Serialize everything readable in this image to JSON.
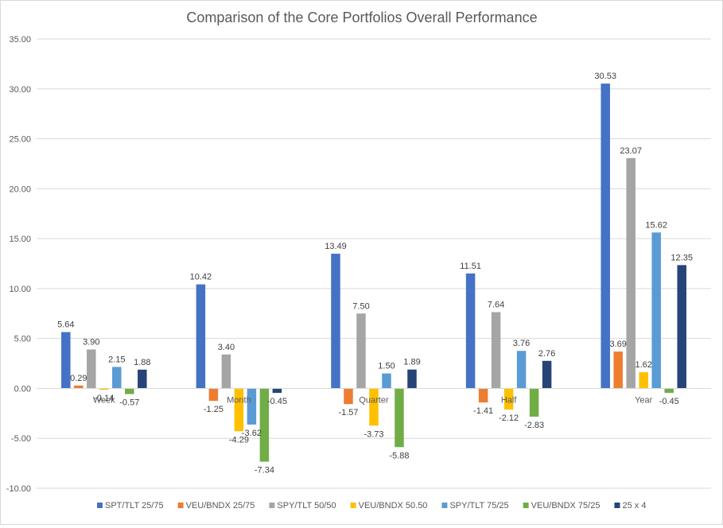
{
  "chart_data": {
    "type": "bar",
    "title": "Comparison of the Core Portfolios Overall Performance",
    "xlabel": "",
    "ylabel": "",
    "ylim": [
      -10,
      35
    ],
    "yticks": [
      "-10.00",
      "-5.00",
      "0.00",
      "5.00",
      "10.00",
      "15.00",
      "20.00",
      "25.00",
      "30.00",
      "35.00"
    ],
    "ytick_values": [
      -10,
      -5,
      0,
      5,
      10,
      15,
      20,
      25,
      30,
      35
    ],
    "grid": true,
    "legend_position": "bottom",
    "categories": [
      "Week",
      "Month",
      "Quarter",
      "Half",
      "Year"
    ],
    "series": [
      {
        "name": "SPT/TLT 25/75",
        "color": "#4472C4",
        "values": [
          5.64,
          10.42,
          13.49,
          11.51,
          30.53
        ],
        "labels": [
          "5.64",
          "10.42",
          "13.49",
          "11.51",
          "30.53"
        ]
      },
      {
        "name": "VEU/BNDX 25/75",
        "color": "#ED7D31",
        "values": [
          0.29,
          -1.25,
          -1.57,
          -1.41,
          3.69
        ],
        "labels": [
          "0.29",
          "-1.25",
          "-1.57",
          "-1.41",
          "3.69"
        ]
      },
      {
        "name": "SPY/TLT 50/50",
        "color": "#A5A5A5",
        "values": [
          3.9,
          3.4,
          7.5,
          7.64,
          23.07
        ],
        "labels": [
          "3.90",
          "3.40",
          "7.50",
          "7.64",
          "23.07"
        ]
      },
      {
        "name": "VEU/BNDX 50.50",
        "color": "#FFC000",
        "values": [
          -0.14,
          -4.29,
          -3.73,
          -2.12,
          1.62
        ],
        "labels": [
          "-0.14",
          "-4.29",
          "-3.73",
          "-2.12",
          "1.62"
        ]
      },
      {
        "name": "SPY/TLT 75/25",
        "color": "#5B9BD5",
        "values": [
          2.15,
          -3.62,
          1.5,
          3.76,
          15.62
        ],
        "labels": [
          "2.15",
          "-3.62",
          "1.50",
          "3.76",
          "15.62"
        ]
      },
      {
        "name": "VEU/BNDX 75/25",
        "color": "#70AD47",
        "values": [
          -0.57,
          -7.34,
          -5.88,
          -2.83,
          -0.45
        ],
        "labels": [
          "-0.57",
          "-7.34",
          "-5.88",
          "-2.83",
          "-0.45"
        ]
      },
      {
        "name": "25 x 4",
        "color": "#264478",
        "values": [
          1.88,
          -0.45,
          1.89,
          2.76,
          12.35
        ],
        "labels": [
          "1.88",
          "-0.45",
          "1.89",
          "2.76",
          "12.35"
        ]
      }
    ]
  }
}
